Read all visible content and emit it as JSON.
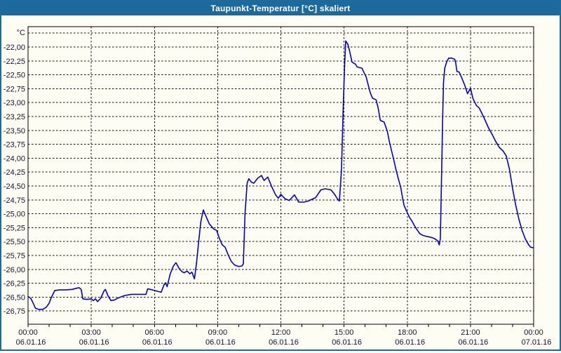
{
  "window": {
    "title": "Taupunkt-Temperatur [°C] skaliert"
  },
  "colors": {
    "titlebar_bg": "#1c699b",
    "window_border": "#1e6a9b",
    "titlebar_text": "#ffffff",
    "page_bg": "#fdfdf4",
    "plot_frame": "#000000",
    "gridline": "#141414",
    "curve": "#0202c6",
    "axis_text": "#14142d"
  },
  "chart_data": {
    "type": "line",
    "title": "Taupunkt-Temperatur [°C] skaliert",
    "y_unit_label": "°C",
    "grid": "dashed",
    "legend": "none",
    "ylim": [
      -27.0,
      -21.7
    ],
    "xlim_hours": [
      0,
      24
    ],
    "y_ticks": {
      "values": [
        -22.0,
        -22.25,
        -22.5,
        -22.75,
        -23.0,
        -23.25,
        -23.5,
        -23.75,
        -24.0,
        -24.25,
        -24.5,
        -24.75,
        -25.0,
        -25.25,
        -25.5,
        -25.75,
        -26.0,
        -26.25,
        -26.5,
        -26.75
      ],
      "labels": [
        "-22,00",
        "-22,25",
        "-22,50",
        "-22,75",
        "-23,00",
        "-23,25",
        "-23,50",
        "-23,75",
        "-24,00",
        "-24,25",
        "-24,50",
        "-24,75",
        "-25,00",
        "-25,25",
        "-25,50",
        "-25,75",
        "-26,00",
        "-26,25",
        "-26,50",
        "-26,75"
      ],
      "unlabeled_gridline": -21.75
    },
    "x_ticks": [
      {
        "hour": 0,
        "time": "00:00",
        "date": "06.01.16"
      },
      {
        "hour": 3,
        "time": "03:00",
        "date": "06.01.16"
      },
      {
        "hour": 6,
        "time": "06:00",
        "date": "06.01.16"
      },
      {
        "hour": 9,
        "time": "09:00",
        "date": "06.01.16"
      },
      {
        "hour": 12,
        "time": "12:00",
        "date": "06.01.16"
      },
      {
        "hour": 15,
        "time": "15:00",
        "date": "06.01.16"
      },
      {
        "hour": 18,
        "time": "18:00",
        "date": "06.01.16"
      },
      {
        "hour": 21,
        "time": "21:00",
        "date": "06.01.16"
      },
      {
        "hour": 24,
        "time": "00:00",
        "date": "07.01.16"
      }
    ],
    "minor_x_tick_every_hours": 1,
    "series": [
      {
        "name": "Taupunkt-Temperatur",
        "color": "#0202c6",
        "points": [
          [
            0,
            -26.49
          ],
          [
            0.13,
            -26.52
          ],
          [
            0.27,
            -26.63
          ],
          [
            0.35,
            -26.7
          ],
          [
            0.5,
            -26.72
          ],
          [
            0.7,
            -26.72
          ],
          [
            0.87,
            -26.68
          ],
          [
            1.0,
            -26.61
          ],
          [
            1.1,
            -26.51
          ],
          [
            1.27,
            -26.38
          ],
          [
            1.5,
            -26.37
          ],
          [
            1.8,
            -26.37
          ],
          [
            2.1,
            -26.36
          ],
          [
            2.3,
            -26.34
          ],
          [
            2.42,
            -26.33
          ],
          [
            2.52,
            -26.36
          ],
          [
            2.6,
            -26.53
          ],
          [
            2.8,
            -26.54
          ],
          [
            3.0,
            -26.53
          ],
          [
            3.1,
            -26.56
          ],
          [
            3.2,
            -26.53
          ],
          [
            3.3,
            -26.58
          ],
          [
            3.45,
            -26.52
          ],
          [
            3.6,
            -26.39
          ],
          [
            3.67,
            -26.36
          ],
          [
            3.8,
            -26.48
          ],
          [
            3.93,
            -26.56
          ],
          [
            4.1,
            -26.55
          ],
          [
            4.3,
            -26.51
          ],
          [
            4.6,
            -26.47
          ],
          [
            4.9,
            -26.45
          ],
          [
            5.3,
            -26.45
          ],
          [
            5.6,
            -26.45
          ],
          [
            5.68,
            -26.35
          ],
          [
            5.8,
            -26.36
          ],
          [
            6.0,
            -26.38
          ],
          [
            6.2,
            -26.4
          ],
          [
            6.32,
            -26.41
          ],
          [
            6.45,
            -26.28
          ],
          [
            6.52,
            -26.24
          ],
          [
            6.6,
            -26.31
          ],
          [
            6.75,
            -26.08
          ],
          [
            6.9,
            -25.94
          ],
          [
            7.02,
            -25.88
          ],
          [
            7.15,
            -25.97
          ],
          [
            7.3,
            -26.04
          ],
          [
            7.42,
            -26.06
          ],
          [
            7.55,
            -26.03
          ],
          [
            7.68,
            -26.08
          ],
          [
            7.78,
            -26.05
          ],
          [
            7.9,
            -26.17
          ],
          [
            8.0,
            -25.88
          ],
          [
            8.1,
            -25.5
          ],
          [
            8.2,
            -25.15
          ],
          [
            8.32,
            -24.93
          ],
          [
            8.45,
            -25.05
          ],
          [
            8.6,
            -25.18
          ],
          [
            8.8,
            -25.27
          ],
          [
            8.95,
            -25.3
          ],
          [
            9.1,
            -25.46
          ],
          [
            9.22,
            -25.56
          ],
          [
            9.35,
            -25.6
          ],
          [
            9.5,
            -25.74
          ],
          [
            9.65,
            -25.86
          ],
          [
            9.8,
            -25.92
          ],
          [
            10.0,
            -25.95
          ],
          [
            10.15,
            -25.94
          ],
          [
            10.22,
            -25.9
          ],
          [
            10.3,
            -25.0
          ],
          [
            10.4,
            -24.45
          ],
          [
            10.48,
            -24.37
          ],
          [
            10.6,
            -24.43
          ],
          [
            10.72,
            -24.45
          ],
          [
            10.9,
            -24.36
          ],
          [
            11.08,
            -24.31
          ],
          [
            11.2,
            -24.4
          ],
          [
            11.38,
            -24.34
          ],
          [
            11.55,
            -24.5
          ],
          [
            11.75,
            -24.66
          ],
          [
            11.88,
            -24.72
          ],
          [
            12.0,
            -24.65
          ],
          [
            12.2,
            -24.73
          ],
          [
            12.4,
            -24.76
          ],
          [
            12.55,
            -24.7
          ],
          [
            12.65,
            -24.66
          ],
          [
            12.85,
            -24.79
          ],
          [
            13.1,
            -24.79
          ],
          [
            13.3,
            -24.77
          ],
          [
            13.65,
            -24.71
          ],
          [
            13.9,
            -24.57
          ],
          [
            14.1,
            -24.55
          ],
          [
            14.38,
            -24.57
          ],
          [
            14.55,
            -24.65
          ],
          [
            14.7,
            -24.74
          ],
          [
            14.78,
            -24.77
          ],
          [
            14.88,
            -24.2
          ],
          [
            14.96,
            -23.1
          ],
          [
            15.02,
            -22.4
          ],
          [
            15.08,
            -21.89
          ],
          [
            15.18,
            -21.95
          ],
          [
            15.25,
            -22.05
          ],
          [
            15.38,
            -22.27
          ],
          [
            15.55,
            -22.31
          ],
          [
            15.62,
            -22.36
          ],
          [
            15.85,
            -22.38
          ],
          [
            15.92,
            -22.44
          ],
          [
            16.05,
            -22.54
          ],
          [
            16.15,
            -22.69
          ],
          [
            16.25,
            -22.83
          ],
          [
            16.35,
            -22.92
          ],
          [
            16.52,
            -22.95
          ],
          [
            16.62,
            -23.1
          ],
          [
            16.72,
            -23.32
          ],
          [
            16.9,
            -23.35
          ],
          [
            17.05,
            -23.51
          ],
          [
            17.15,
            -23.7
          ],
          [
            17.27,
            -23.89
          ],
          [
            17.38,
            -24.06
          ],
          [
            17.48,
            -24.23
          ],
          [
            17.6,
            -24.4
          ],
          [
            17.7,
            -24.54
          ],
          [
            17.78,
            -24.72
          ],
          [
            17.85,
            -24.85
          ],
          [
            18.0,
            -24.98
          ],
          [
            18.1,
            -25.06
          ],
          [
            18.22,
            -25.13
          ],
          [
            18.35,
            -25.22
          ],
          [
            18.45,
            -25.28
          ],
          [
            18.6,
            -25.36
          ],
          [
            18.75,
            -25.39
          ],
          [
            18.95,
            -25.41
          ],
          [
            19.1,
            -25.42
          ],
          [
            19.25,
            -25.44
          ],
          [
            19.35,
            -25.46
          ],
          [
            19.45,
            -25.49
          ],
          [
            19.52,
            -25.56
          ],
          [
            19.57,
            -25.45
          ],
          [
            19.6,
            -24.9
          ],
          [
            19.64,
            -24.1
          ],
          [
            19.68,
            -23.3
          ],
          [
            19.72,
            -22.65
          ],
          [
            19.78,
            -22.38
          ],
          [
            19.88,
            -22.26
          ],
          [
            19.97,
            -22.2
          ],
          [
            20.1,
            -22.2
          ],
          [
            20.25,
            -22.22
          ],
          [
            20.3,
            -22.28
          ],
          [
            20.36,
            -22.44
          ],
          [
            20.46,
            -22.45
          ],
          [
            20.58,
            -22.55
          ],
          [
            20.72,
            -22.68
          ],
          [
            20.86,
            -22.84
          ],
          [
            21.0,
            -22.74
          ],
          [
            21.12,
            -22.93
          ],
          [
            21.28,
            -23.05
          ],
          [
            21.42,
            -23.1
          ],
          [
            21.55,
            -23.2
          ],
          [
            21.7,
            -23.32
          ],
          [
            21.85,
            -23.45
          ],
          [
            22.0,
            -23.55
          ],
          [
            22.2,
            -23.7
          ],
          [
            22.38,
            -23.81
          ],
          [
            22.55,
            -23.87
          ],
          [
            22.7,
            -23.96
          ],
          [
            22.85,
            -24.2
          ],
          [
            23.0,
            -24.55
          ],
          [
            23.15,
            -24.85
          ],
          [
            23.3,
            -25.1
          ],
          [
            23.45,
            -25.3
          ],
          [
            23.6,
            -25.45
          ],
          [
            23.75,
            -25.55
          ],
          [
            23.85,
            -25.6
          ],
          [
            23.97,
            -25.61
          ]
        ]
      }
    ]
  }
}
